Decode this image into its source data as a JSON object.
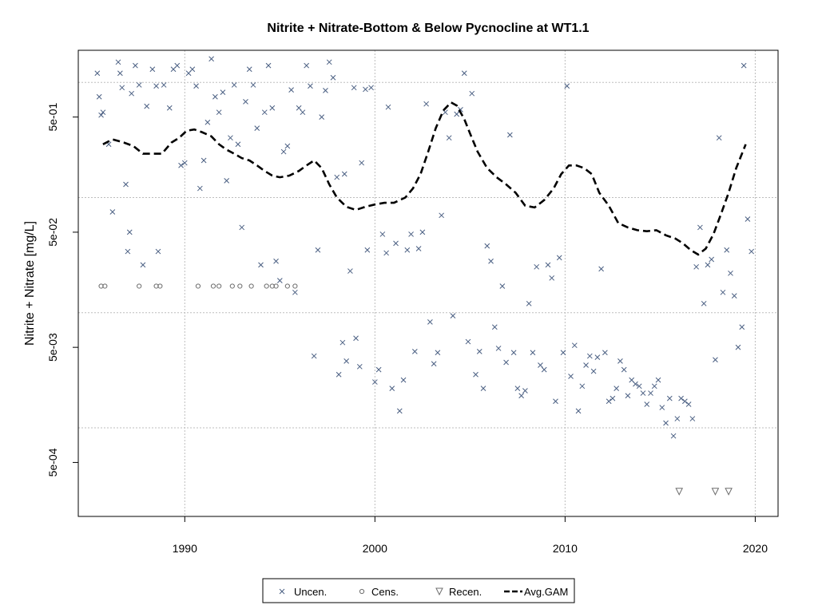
{
  "chart_data": {
    "type": "scatter",
    "title": "Nitrite + Nitrate-Bottom & Below Pycnocline at WT1.1",
    "ylabel": "Nitrite + Nitrate [mg/L]",
    "xlabel": "",
    "y_scale": "log",
    "xlim": [
      1984.4,
      2021.2
    ],
    "ylim": [
      0.00017,
      1.9
    ],
    "x_ticks": [
      1990,
      2000,
      2010,
      2020
    ],
    "x_tick_labels": [
      "1990",
      "2000",
      "2010",
      "2020"
    ],
    "y_tick_labels": [
      {
        "value": 0.5,
        "label": "5e-01"
      },
      {
        "value": 0.05,
        "label": "5e-02"
      },
      {
        "value": 0.005,
        "label": "5e-03"
      },
      {
        "value": 0.0005,
        "label": "5e-04"
      }
    ],
    "y_grid": [
      1.0,
      0.1,
      0.01,
      0.001
    ],
    "grid": true,
    "legend": {
      "placement": "bottom",
      "entries": [
        "Uncen.",
        "Cens.",
        "Recen.",
        "Avg.GAM"
      ]
    },
    "series": [
      {
        "name": "Uncen.",
        "points": [
          [
            1985.4,
            1.2
          ],
          [
            1985.5,
            0.75
          ],
          [
            1985.6,
            0.52
          ],
          [
            1985.7,
            0.55
          ],
          [
            1986.0,
            0.29
          ],
          [
            1986.2,
            0.075
          ],
          [
            1986.5,
            1.5
          ],
          [
            1986.6,
            1.2
          ],
          [
            1986.7,
            0.9
          ],
          [
            1986.9,
            0.13
          ],
          [
            1987.0,
            0.034
          ],
          [
            1987.1,
            0.05
          ],
          [
            1987.2,
            0.8
          ],
          [
            1987.4,
            1.4
          ],
          [
            1987.6,
            0.95
          ],
          [
            1987.8,
            0.026
          ],
          [
            1988.0,
            0.62
          ],
          [
            1988.3,
            1.3
          ],
          [
            1988.5,
            0.93
          ],
          [
            1988.6,
            0.034
          ],
          [
            1988.9,
            0.95
          ],
          [
            1989.2,
            0.6
          ],
          [
            1989.4,
            1.3
          ],
          [
            1989.6,
            1.4
          ],
          [
            1989.8,
            0.19
          ],
          [
            1990.0,
            0.2
          ],
          [
            1990.2,
            1.2
          ],
          [
            1990.4,
            1.3
          ],
          [
            1990.6,
            0.93
          ],
          [
            1990.8,
            0.12
          ],
          [
            1991.0,
            0.21
          ],
          [
            1991.2,
            0.45
          ],
          [
            1991.4,
            1.6
          ],
          [
            1991.6,
            0.75
          ],
          [
            1991.8,
            0.55
          ],
          [
            1992.0,
            0.82
          ],
          [
            1992.2,
            0.14
          ],
          [
            1992.4,
            0.33
          ],
          [
            1992.6,
            0.95
          ],
          [
            1992.8,
            0.29
          ],
          [
            1993.0,
            0.055
          ],
          [
            1993.2,
            0.68
          ],
          [
            1993.4,
            1.3
          ],
          [
            1993.6,
            0.95
          ],
          [
            1993.8,
            0.4
          ],
          [
            1994.0,
            0.026
          ],
          [
            1994.2,
            0.55
          ],
          [
            1994.4,
            1.4
          ],
          [
            1994.6,
            0.6
          ],
          [
            1994.8,
            0.028
          ],
          [
            1995.0,
            0.019
          ],
          [
            1995.2,
            0.25
          ],
          [
            1995.4,
            0.28
          ],
          [
            1995.6,
            0.86
          ],
          [
            1995.8,
            0.015
          ],
          [
            1996.0,
            0.6
          ],
          [
            1996.2,
            0.55
          ],
          [
            1996.4,
            1.4
          ],
          [
            1996.6,
            0.93
          ],
          [
            1996.8,
            0.0042
          ],
          [
            1997.0,
            0.035
          ],
          [
            1997.2,
            0.5
          ],
          [
            1997.4,
            0.85
          ],
          [
            1997.6,
            1.5
          ],
          [
            1997.8,
            1.1
          ],
          [
            1998.0,
            0.15
          ],
          [
            1998.1,
            0.0029
          ],
          [
            1998.3,
            0.0055
          ],
          [
            1998.4,
            0.16
          ],
          [
            1998.5,
            0.0038
          ],
          [
            1998.7,
            0.023
          ],
          [
            1998.9,
            0.9
          ],
          [
            1999.0,
            0.006
          ],
          [
            1999.2,
            0.0034
          ],
          [
            1999.3,
            0.2
          ],
          [
            1999.5,
            0.87
          ],
          [
            1999.6,
            0.035
          ],
          [
            1999.8,
            0.9
          ],
          [
            2000.0,
            0.0025
          ],
          [
            2000.2,
            0.0032
          ],
          [
            2000.4,
            0.048
          ],
          [
            2000.6,
            0.033
          ],
          [
            2000.7,
            0.61
          ],
          [
            2000.9,
            0.0022
          ],
          [
            2001.1,
            0.04
          ],
          [
            2001.3,
            0.0014
          ],
          [
            2001.5,
            0.0026
          ],
          [
            2001.7,
            0.035
          ],
          [
            2001.9,
            0.048
          ],
          [
            2002.1,
            0.0046
          ],
          [
            2002.3,
            0.036
          ],
          [
            2002.5,
            0.05
          ],
          [
            2002.7,
            0.65
          ],
          [
            2002.9,
            0.0083
          ],
          [
            2003.1,
            0.0036
          ],
          [
            2003.3,
            0.0045
          ],
          [
            2003.5,
            0.07
          ],
          [
            2003.7,
            0.55
          ],
          [
            2003.9,
            0.33
          ],
          [
            2004.1,
            0.0094
          ],
          [
            2004.3,
            0.53
          ],
          [
            2004.5,
            0.58
          ],
          [
            2004.7,
            1.2
          ],
          [
            2004.9,
            0.0056
          ],
          [
            2005.1,
            0.8
          ],
          [
            2005.3,
            0.0029
          ],
          [
            2005.5,
            0.0046
          ],
          [
            2005.7,
            0.0022
          ],
          [
            2005.9,
            0.038
          ],
          [
            2006.1,
            0.028
          ],
          [
            2006.3,
            0.0075
          ],
          [
            2006.5,
            0.0049
          ],
          [
            2006.7,
            0.017
          ],
          [
            2006.9,
            0.0037
          ],
          [
            2007.1,
            0.35
          ],
          [
            2007.3,
            0.0045
          ],
          [
            2007.5,
            0.0022
          ],
          [
            2007.7,
            0.0019
          ],
          [
            2007.9,
            0.0021
          ],
          [
            2008.1,
            0.012
          ],
          [
            2008.3,
            0.0045
          ],
          [
            2008.5,
            0.025
          ],
          [
            2008.7,
            0.0035
          ],
          [
            2008.9,
            0.0032
          ],
          [
            2009.1,
            0.026
          ],
          [
            2009.3,
            0.02
          ],
          [
            2009.5,
            0.0017
          ],
          [
            2009.7,
            0.03
          ],
          [
            2009.9,
            0.0045
          ],
          [
            2010.1,
            0.93
          ],
          [
            2010.3,
            0.0028
          ],
          [
            2010.5,
            0.0052
          ],
          [
            2010.7,
            0.0014
          ],
          [
            2010.9,
            0.0023
          ],
          [
            2011.1,
            0.0035
          ],
          [
            2011.3,
            0.0042
          ],
          [
            2011.5,
            0.0031
          ],
          [
            2011.7,
            0.0041
          ],
          [
            2011.9,
            0.024
          ],
          [
            2012.1,
            0.0045
          ],
          [
            2012.3,
            0.0017
          ],
          [
            2012.5,
            0.0018
          ],
          [
            2012.7,
            0.0022
          ],
          [
            2012.9,
            0.0038
          ],
          [
            2013.1,
            0.0032
          ],
          [
            2013.3,
            0.0019
          ],
          [
            2013.5,
            0.0026
          ],
          [
            2013.7,
            0.0024
          ],
          [
            2013.9,
            0.0023
          ],
          [
            2014.1,
            0.002
          ],
          [
            2014.3,
            0.0016
          ],
          [
            2014.5,
            0.002
          ],
          [
            2014.7,
            0.0023
          ],
          [
            2014.9,
            0.0026
          ],
          [
            2015.1,
            0.0015
          ],
          [
            2015.3,
            0.0011
          ],
          [
            2015.5,
            0.0018
          ],
          [
            2015.7,
            0.00085
          ],
          [
            2015.9,
            0.0012
          ],
          [
            2016.1,
            0.0018
          ],
          [
            2016.3,
            0.0017
          ],
          [
            2016.5,
            0.0016
          ],
          [
            2016.7,
            0.0012
          ],
          [
            2016.9,
            0.025
          ],
          [
            2017.1,
            0.055
          ],
          [
            2017.3,
            0.012
          ],
          [
            2017.5,
            0.026
          ],
          [
            2017.7,
            0.029
          ],
          [
            2017.9,
            0.0039
          ],
          [
            2018.1,
            0.33
          ],
          [
            2018.3,
            0.015
          ],
          [
            2018.5,
            0.035
          ],
          [
            2018.7,
            0.022
          ],
          [
            2018.9,
            0.014
          ],
          [
            2019.1,
            0.005
          ],
          [
            2019.3,
            0.0075
          ],
          [
            2019.4,
            1.4
          ],
          [
            2019.6,
            0.065
          ],
          [
            2019.8,
            0.034
          ]
        ]
      },
      {
        "name": "Cens.",
        "points": [
          [
            1985.6,
            0.017
          ],
          [
            1985.8,
            0.017
          ],
          [
            1987.6,
            0.017
          ],
          [
            1988.5,
            0.017
          ],
          [
            1988.7,
            0.017
          ],
          [
            1990.7,
            0.017
          ],
          [
            1991.5,
            0.017
          ],
          [
            1991.8,
            0.017
          ],
          [
            1992.5,
            0.017
          ],
          [
            1992.9,
            0.017
          ],
          [
            1993.5,
            0.017
          ],
          [
            1994.3,
            0.017
          ],
          [
            1994.6,
            0.017
          ],
          [
            1994.8,
            0.017
          ],
          [
            1995.4,
            0.017
          ],
          [
            1995.8,
            0.017
          ]
        ]
      },
      {
        "name": "Recen.",
        "points": [
          [
            2016.0,
            0.00028
          ],
          [
            2017.9,
            0.00028
          ],
          [
            2018.6,
            0.00028
          ]
        ]
      },
      {
        "name": "Avg.GAM",
        "points": [
          [
            1985.7,
            0.29
          ],
          [
            1986.2,
            0.32
          ],
          [
            1986.8,
            0.3
          ],
          [
            1987.3,
            0.28
          ],
          [
            1987.8,
            0.24
          ],
          [
            1988.3,
            0.24
          ],
          [
            1988.8,
            0.24
          ],
          [
            1989.3,
            0.3
          ],
          [
            1989.7,
            0.33
          ],
          [
            1990.1,
            0.38
          ],
          [
            1990.5,
            0.39
          ],
          [
            1990.9,
            0.37
          ],
          [
            1991.4,
            0.34
          ],
          [
            1991.8,
            0.29
          ],
          [
            1992.2,
            0.26
          ],
          [
            1992.6,
            0.24
          ],
          [
            1993.0,
            0.22
          ],
          [
            1993.4,
            0.21
          ],
          [
            1993.8,
            0.19
          ],
          [
            1994.2,
            0.17
          ],
          [
            1994.6,
            0.155
          ],
          [
            1995.0,
            0.15
          ],
          [
            1995.5,
            0.155
          ],
          [
            1996.0,
            0.17
          ],
          [
            1996.4,
            0.19
          ],
          [
            1996.8,
            0.21
          ],
          [
            1997.2,
            0.18
          ],
          [
            1997.6,
            0.13
          ],
          [
            1998.0,
            0.1
          ],
          [
            1998.5,
            0.083
          ],
          [
            1999.0,
            0.078
          ],
          [
            1999.5,
            0.083
          ],
          [
            2000.0,
            0.087
          ],
          [
            2000.5,
            0.09
          ],
          [
            2001.0,
            0.09
          ],
          [
            2001.6,
            0.1
          ],
          [
            2002.0,
            0.12
          ],
          [
            2002.4,
            0.16
          ],
          [
            2002.8,
            0.25
          ],
          [
            2003.2,
            0.4
          ],
          [
            2003.6,
            0.57
          ],
          [
            2004.0,
            0.67
          ],
          [
            2004.3,
            0.63
          ],
          [
            2004.7,
            0.48
          ],
          [
            2005.0,
            0.36
          ],
          [
            2005.4,
            0.25
          ],
          [
            2005.9,
            0.18
          ],
          [
            2006.4,
            0.15
          ],
          [
            2006.9,
            0.13
          ],
          [
            2007.4,
            0.11
          ],
          [
            2007.9,
            0.085
          ],
          [
            2008.4,
            0.082
          ],
          [
            2008.9,
            0.095
          ],
          [
            2009.4,
            0.12
          ],
          [
            2009.8,
            0.16
          ],
          [
            2010.2,
            0.19
          ],
          [
            2010.6,
            0.19
          ],
          [
            2011.0,
            0.18
          ],
          [
            2011.4,
            0.16
          ],
          [
            2011.8,
            0.11
          ],
          [
            2012.3,
            0.085
          ],
          [
            2012.8,
            0.06
          ],
          [
            2013.3,
            0.055
          ],
          [
            2013.8,
            0.052
          ],
          [
            2014.3,
            0.051
          ],
          [
            2014.8,
            0.052
          ],
          [
            2015.3,
            0.047
          ],
          [
            2015.8,
            0.044
          ],
          [
            2016.2,
            0.04
          ],
          [
            2016.6,
            0.035
          ],
          [
            2017.0,
            0.032
          ],
          [
            2017.4,
            0.036
          ],
          [
            2017.8,
            0.048
          ],
          [
            2018.2,
            0.072
          ],
          [
            2018.6,
            0.11
          ],
          [
            2019.0,
            0.18
          ],
          [
            2019.5,
            0.29
          ]
        ]
      }
    ]
  }
}
